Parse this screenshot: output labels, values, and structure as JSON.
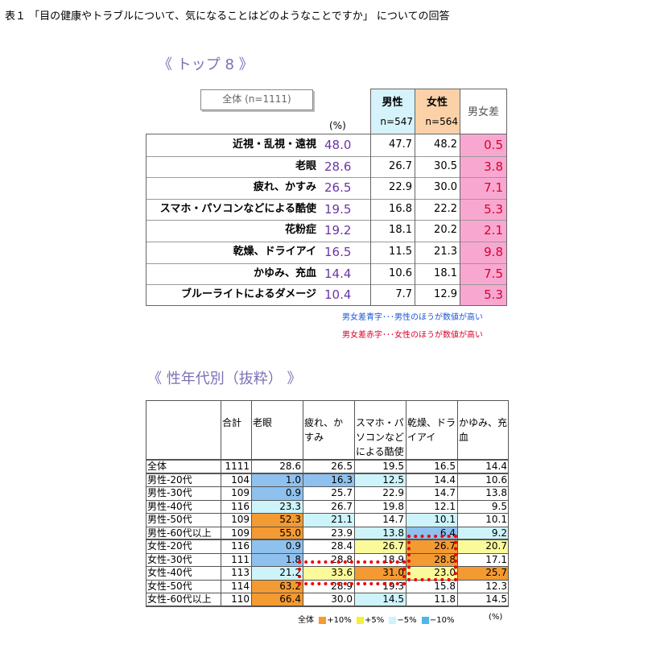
{
  "title": "表１ 「目の健康やトラブルについて、気になることはどのようなことですか」 についての回答",
  "section1_title": "《 トップ 8 》",
  "section2_title": "《 性年代別（抜粋） 》",
  "top8": {
    "all_header": "全体 (n=1111)",
    "unit": "(%)",
    "male_header": "男性",
    "male_n": "n=547",
    "female_header": "女性",
    "female_n": "n=564",
    "diff_header": "男女差",
    "colors": {
      "male_bg": "#d6f2fb",
      "female_bg": "#fbd2a8",
      "diff_bg": "#f8a8d0",
      "all_value": "#6a35a8",
      "diff_text": "#d8002e"
    },
    "rows": [
      {
        "label": "近視・乱視・遠視",
        "all": "48.0",
        "male": "47.7",
        "female": "48.2",
        "diff": "0.5"
      },
      {
        "label": "老眼",
        "all": "28.6",
        "male": "26.7",
        "female": "30.5",
        "diff": "3.8"
      },
      {
        "label": "疲れ、かすみ",
        "all": "26.5",
        "male": "22.9",
        "female": "30.0",
        "diff": "7.1"
      },
      {
        "label": "スマホ・パソコンなどによる酷使",
        "all": "19.5",
        "male": "16.8",
        "female": "22.2",
        "diff": "5.3"
      },
      {
        "label": "花粉症",
        "all": "19.2",
        "male": "18.1",
        "female": "20.2",
        "diff": "2.1"
      },
      {
        "label": "乾燥、ドライアイ",
        "all": "16.5",
        "male": "11.5",
        "female": "21.3",
        "diff": "9.8"
      },
      {
        "label": "かゆみ、充血",
        "all": "14.4",
        "male": "10.6",
        "female": "18.1",
        "diff": "7.5"
      },
      {
        "label": "ブルーライトによるダメージ",
        "all": "10.4",
        "male": "7.7",
        "female": "12.9",
        "diff": "5.3"
      }
    ],
    "note_blue": "男女差青字･･･男性のほうが数値が高い",
    "note_red": "男女差赤字･･･女性のほうが数値が高い"
  },
  "age_table": {
    "headers": [
      "合計",
      "老眼",
      "疲れ、かすみ",
      "スマホ・パソコンなどによる酷使",
      "乾燥、ドライアイ",
      "かゆみ、充血"
    ],
    "colors": {
      "plus10": "#f39a32",
      "plus5": "#fbfa9b",
      "minus5": "#cdf4fb",
      "minus10": "#8fc1ee"
    },
    "rows": [
      {
        "label": "全体",
        "total": "1111",
        "v": [
          "28.6",
          "26.5",
          "19.5",
          "16.5",
          "14.4"
        ],
        "h": [
          "",
          "",
          "",
          "",
          ""
        ]
      },
      {
        "label": "男性-20代",
        "total": "104",
        "v": [
          "1.0",
          "16.3",
          "12.5",
          "14.4",
          "10.6"
        ],
        "h": [
          "m10",
          "m10",
          "m5",
          "",
          ""
        ]
      },
      {
        "label": "男性-30代",
        "total": "109",
        "v": [
          "0.9",
          "25.7",
          "22.9",
          "14.7",
          "13.8"
        ],
        "h": [
          "m10",
          "",
          "",
          "",
          ""
        ]
      },
      {
        "label": "男性-40代",
        "total": "116",
        "v": [
          "23.3",
          "26.7",
          "19.8",
          "12.1",
          "9.5"
        ],
        "h": [
          "m5",
          "",
          "",
          "",
          ""
        ]
      },
      {
        "label": "男性-50代",
        "total": "109",
        "v": [
          "52.3",
          "21.1",
          "14.7",
          "10.1",
          "10.1"
        ],
        "h": [
          "p10",
          "m5",
          "",
          "m5",
          ""
        ]
      },
      {
        "label": "男性-60代以上",
        "total": "109",
        "v": [
          "55.0",
          "23.9",
          "13.8",
          "6.4",
          "9.2"
        ],
        "h": [
          "p10",
          "",
          "m5",
          "m10",
          "m5"
        ]
      },
      {
        "label": "女性-20代",
        "total": "116",
        "v": [
          "0.9",
          "28.4",
          "26.7",
          "26.7",
          "20.7"
        ],
        "h": [
          "m10",
          "",
          "p5",
          "p10",
          "p5"
        ]
      },
      {
        "label": "女性-30代",
        "total": "111",
        "v": [
          "1.8",
          "28.8",
          "18.9",
          "28.8",
          "17.1"
        ],
        "h": [
          "m10",
          "",
          "",
          "p10",
          ""
        ]
      },
      {
        "label": "女性-40代",
        "total": "113",
        "v": [
          "21.2",
          "33.6",
          "31.0",
          "23.0",
          "25.7"
        ],
        "h": [
          "m5",
          "p5",
          "p10",
          "p5",
          "p10"
        ]
      },
      {
        "label": "女性-50代",
        "total": "114",
        "v": [
          "63.2",
          "28.9",
          "19.3",
          "15.8",
          "12.3"
        ],
        "h": [
          "p10",
          "",
          "",
          "",
          ""
        ]
      },
      {
        "label": "女性-60代以上",
        "total": "110",
        "v": [
          "66.4",
          "30.0",
          "14.5",
          "11.8",
          "14.5"
        ],
        "h": [
          "p10",
          "",
          "m5",
          "",
          ""
        ]
      }
    ],
    "legend": {
      "all": "全体",
      "plus10": "+10%",
      "plus5": "+5%",
      "minus5": "−5%",
      "minus10": "−10%",
      "unit": "(%)"
    }
  }
}
